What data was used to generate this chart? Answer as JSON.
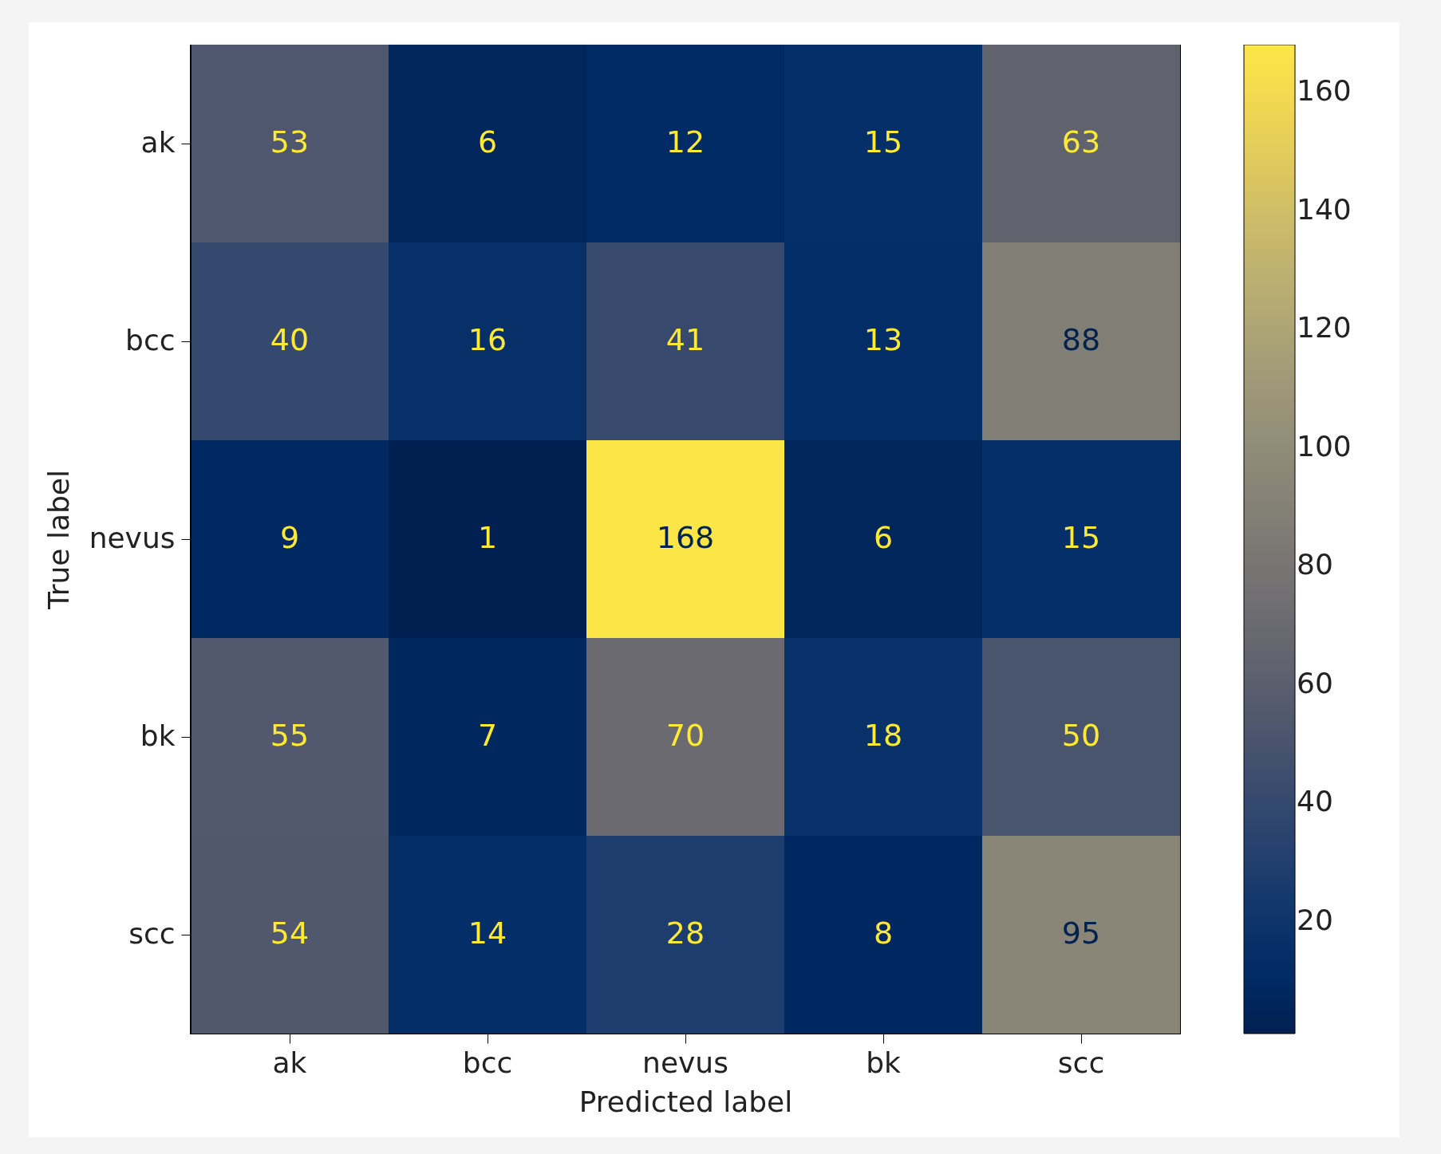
{
  "chart_data": {
    "type": "heatmap",
    "xlabel": "Predicted label",
    "ylabel": "True label",
    "categories": [
      "ak",
      "bcc",
      "nevus",
      "bk",
      "scc"
    ],
    "y_categories": [
      "ak",
      "bcc",
      "nevus",
      "bk",
      "scc"
    ],
    "cells": [
      [
        53,
        6,
        12,
        15,
        63
      ],
      [
        40,
        16,
        41,
        13,
        88
      ],
      [
        9,
        1,
        168,
        6,
        15
      ],
      [
        55,
        7,
        70,
        18,
        50
      ],
      [
        54,
        14,
        28,
        8,
        95
      ]
    ],
    "clim": [
      1,
      168
    ],
    "cticks": [
      20,
      40,
      60,
      80,
      100,
      120,
      140,
      160
    ],
    "data_labels": true
  }
}
